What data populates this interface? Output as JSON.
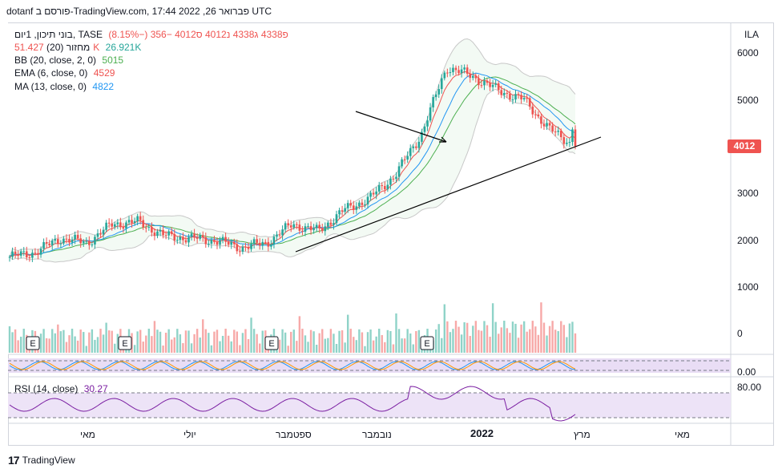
{
  "caption": "dotanf פורסם ב-TradingView.com, פברואר 26, 2022 17:44 UTC",
  "legend": {
    "title": "בוני תיכון, 1יום, TASE",
    "ohlc": "פ4338 ג4338 נ4012 ס4012 −356 (−8.15%)",
    "volume_label": "מחזור (20)",
    "volume_value": "51.427K",
    "volume_ma": "26.921K",
    "bb_label": "BB (20, close, 2, 0)",
    "bb_value": "5015",
    "ema_label": "EMA (6, close, 0)",
    "ema_value": "4529",
    "ma_label": "MA (13, close, 0)",
    "ma_value": "4822",
    "rsi_label": "RSI (14, close)",
    "rsi_value": "30.27"
  },
  "price_axis": {
    "currency": "ILA",
    "ticks": [
      "6000",
      "5000",
      "4000",
      "3000",
      "2000",
      "1000",
      "0"
    ],
    "last_price_tag": "4012",
    "osc_tick": "0.00",
    "rsi_tick": "80.00"
  },
  "time_axis": [
    "מאי",
    "יולי",
    "ספטמבר",
    "נובמבר",
    "2022",
    "מרץ",
    "מאי"
  ],
  "earnings_marker": "E",
  "footer": "TradingView",
  "colors": {
    "up": "#26a69a",
    "down": "#ef5350",
    "bb": "#4caf50",
    "ema": "#ef5350",
    "ma": "#2196f3",
    "rsi": "#7b1fa2",
    "arrow": "#000000"
  },
  "chart_data": {
    "type": "candlestick",
    "symbol": "בוני תיכון",
    "exchange": "TASE",
    "interval": "1D",
    "ylim": [
      0,
      6200
    ],
    "last": {
      "open": 4338,
      "high": 4338,
      "low": 4012,
      "close": 4012,
      "change": -356,
      "change_pct": -8.15
    },
    "close_series_approx": [
      {
        "x": "2021-04",
        "y": 1650
      },
      {
        "x": "2021-05",
        "y": 1750
      },
      {
        "x": "2021-05",
        "y": 2050
      },
      {
        "x": "2021-06",
        "y": 1950
      },
      {
        "x": "2021-06",
        "y": 2350
      },
      {
        "x": "2021-07",
        "y": 2400
      },
      {
        "x": "2021-07",
        "y": 2100
      },
      {
        "x": "2021-08",
        "y": 2050
      },
      {
        "x": "2021-08",
        "y": 2000
      },
      {
        "x": "2021-09",
        "y": 1850
      },
      {
        "x": "2021-09",
        "y": 1950
      },
      {
        "x": "2021-10",
        "y": 2350
      },
      {
        "x": "2021-10",
        "y": 2200
      },
      {
        "x": "2021-11",
        "y": 2650
      },
      {
        "x": "2021-11",
        "y": 2900
      },
      {
        "x": "2021-12",
        "y": 3400
      },
      {
        "x": "2021-12",
        "y": 4250
      },
      {
        "x": "2022-01",
        "y": 5700
      },
      {
        "x": "2022-01",
        "y": 5500
      },
      {
        "x": "2022-02",
        "y": 5200
      },
      {
        "x": "2022-02",
        "y": 5000
      },
      {
        "x": "2022-02",
        "y": 4368
      },
      {
        "x": "2022-02",
        "y": 4012
      }
    ],
    "indicators": {
      "bb": 5015,
      "ema6": 4529,
      "ma13": 4822,
      "volume": 51427,
      "volume_ma20": 26921,
      "rsi14": 30.27
    },
    "rsi_band": [
      20,
      80
    ]
  }
}
